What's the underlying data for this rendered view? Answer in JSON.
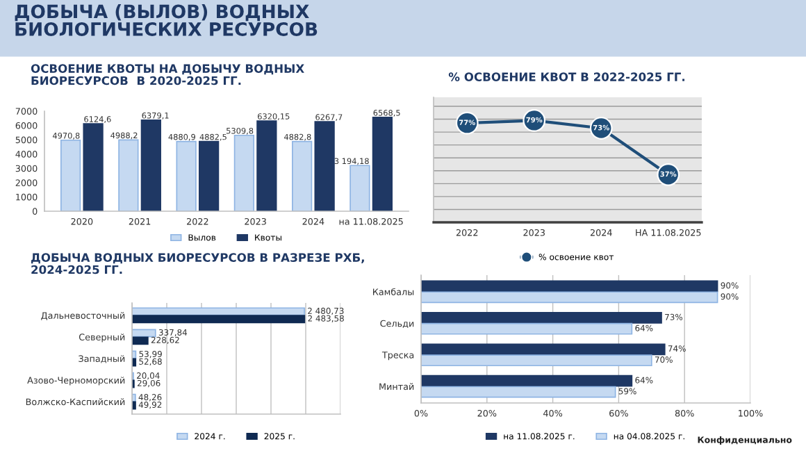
{
  "chart_data": [
    {
      "type": "bar",
      "title": "ОСВОЕНИЕ КВОТЫ НА ДОБЫЧУ ВОДНЫХ\nБИОРЕСУРСОВ  В 2020-2025 ГГ.",
      "annotations": [
        "ДОБЫЧА (ВЫЛОВ) ВОДНЫХ\nБИОЛОГИЧЕСКИХ РЕСУРСОВ"
      ],
      "categories": [
        "2020",
        "2021",
        "2022",
        "2023",
        "2024",
        "на 11.08.2025"
      ],
      "series": [
        {
          "name": "Вылов",
          "color": "#c5d9f1",
          "values": [
            4970.8,
            4988.2,
            4880.9,
            5309.8,
            4882.8,
            3194.18
          ],
          "value_labels": [
            "4970,8",
            "4988,2",
            "4880,9",
            "5309,8",
            "4882,8",
            "3 194,18"
          ]
        },
        {
          "name": "Квоты",
          "color": "#1f3864",
          "values": [
            6124.6,
            6379.1,
            4882.5,
            6320.15,
            6267.7,
            6568.5
          ],
          "value_labels": [
            "6124,6",
            "6379,1",
            "4882,5",
            "6320,15",
            "6267,7",
            "6568,5"
          ]
        }
      ],
      "ylim": [
        0,
        7000
      ],
      "yticks": [
        0,
        1000,
        2000,
        3000,
        4000,
        5000,
        6000,
        7000
      ],
      "legend": "bottom"
    },
    {
      "type": "line",
      "title": "% ОСВОЕНИЕ КВОТ В 2022-2025 ГГ.",
      "categories": [
        "2022",
        "2023",
        "2024",
        "НА 11.08.2025"
      ],
      "series": [
        {
          "name": "% освоение квот",
          "color": "#1f4e79",
          "values": [
            77,
            79,
            73,
            37
          ],
          "value_labels": [
            "77%",
            "79%",
            "73%",
            "37%"
          ]
        }
      ],
      "ylim": [
        0,
        97
      ],
      "yticks": [
        {
          "value": 10,
          "label": null
        },
        {
          "value": 20,
          "label": null
        },
        {
          "value": 30,
          "label": null
        },
        {
          "value": 40,
          "label": null
        },
        {
          "value": 50,
          "label": null
        },
        {
          "value": 60,
          "label": null
        },
        {
          "value": 70,
          "label": null
        },
        {
          "value": 80,
          "label": null
        },
        {
          "value": 90,
          "label": null
        }
      ],
      "tick_labels": "x",
      "grid": "y",
      "marker": "circle",
      "line_style": "solid",
      "legend": "bottom"
    },
    {
      "type": "bar",
      "orientation": "horizontal",
      "title": "ДОБЫЧА ВОДНЫХ БИОРЕСУРСОВ В РАЗРЕЗЕ РХБ,\n2024-2025 ГГ.",
      "categories": [
        "Дальневосточный",
        "Северный",
        "Западный",
        "Азово-Черноморский",
        "Волжско-Каспийский"
      ],
      "series": [
        {
          "name": "2024 г.",
          "color": "#c5d9f1",
          "values": [
            2480.73,
            337.84,
            53.99,
            20.04,
            48.26
          ],
          "value_labels": [
            "2 480,73",
            "337,84",
            "53,99",
            "20,04",
            "48,26"
          ]
        },
        {
          "name": "2025 г.",
          "color": "#0f2a52",
          "values": [
            2483.58,
            228.62,
            52.68,
            29.06,
            49.92
          ],
          "value_labels": [
            "2 483,58",
            "228,62",
            "52,68",
            "29,06",
            "49,92"
          ]
        }
      ],
      "xlim": [
        0,
        3000
      ],
      "xticks": [
        {
          "value": 0,
          "label": null
        },
        {
          "value": 500,
          "label": null
        },
        {
          "value": 1000,
          "label": null
        },
        {
          "value": 1500,
          "label": null
        },
        {
          "value": 2000,
          "label": null
        },
        {
          "value": 2500,
          "label": null
        },
        {
          "value": 3000,
          "label": null
        }
      ],
      "tick_labels": "y",
      "grid": "x",
      "legend": "bottom"
    },
    {
      "type": "bar",
      "orientation": "horizontal",
      "annotations": [
        "Конфиденциально"
      ],
      "categories": [
        "Камбалы",
        "Сельди",
        "Треска",
        "Минтай"
      ],
      "series": [
        {
          "name": "на 11.08.2025 г.",
          "color": "#1f3864",
          "values": [
            90,
            73,
            74,
            64
          ],
          "value_labels": [
            "90%",
            "73%",
            "74%",
            "64%"
          ]
        },
        {
          "name": "на 04.08.2025 г.",
          "color": "#c5d9f1",
          "values": [
            90,
            64,
            70,
            59
          ],
          "value_labels": [
            "90%",
            "64%",
            "70%",
            "59%"
          ]
        }
      ],
      "xlim": [
        0,
        100
      ],
      "xticks": [
        {
          "value": 0,
          "label": "0%"
        },
        {
          "value": 20,
          "label": "20%"
        },
        {
          "value": 40,
          "label": "40%"
        },
        {
          "value": 60,
          "label": "60%"
        },
        {
          "value": 80,
          "label": "80%"
        },
        {
          "value": 100,
          "label": "100%"
        }
      ],
      "grid": "x",
      "legend": "bottom"
    }
  ]
}
